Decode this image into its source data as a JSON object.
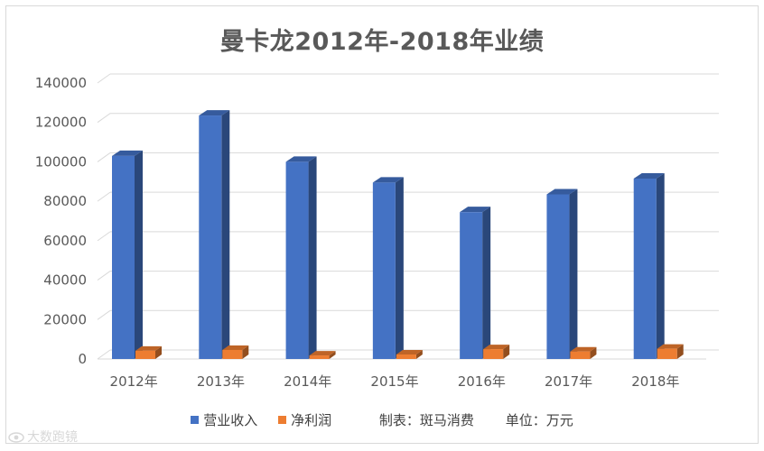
{
  "chart_data": {
    "type": "bar",
    "title": "曼卡龙2012年-2018年业绩",
    "categories": [
      "2012年",
      "2013年",
      "2014年",
      "2015年",
      "2016年",
      "2017年",
      "2018年"
    ],
    "series": [
      {
        "name": "营业收入",
        "color": "#4472c4",
        "values": [
          103000,
          123500,
          100000,
          89500,
          74500,
          83500,
          91500
        ]
      },
      {
        "name": "净利润",
        "color": "#ed7d31",
        "values": [
          4200,
          4600,
          1800,
          2300,
          5000,
          3800,
          5200
        ]
      }
    ],
    "y_ticks": [
      "0",
      "20000",
      "40000",
      "60000",
      "80000",
      "100000",
      "120000",
      "140000"
    ],
    "ylim": [
      0,
      140000
    ],
    "grid": true,
    "legend_position": "bottom",
    "notes": [
      "制表：斑马消费",
      "单位：万元"
    ]
  },
  "watermark": "大数跑镜",
  "watermark_icon": "eye-logo-icon"
}
